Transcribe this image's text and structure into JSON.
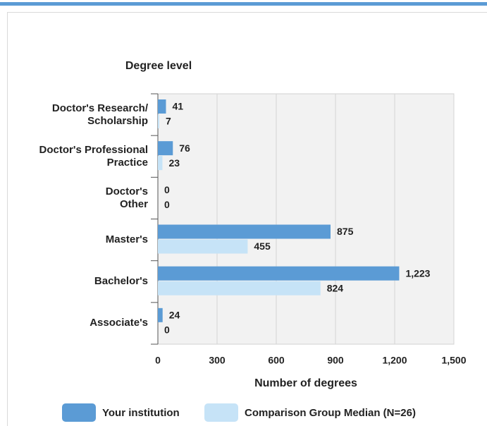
{
  "chart_data": {
    "type": "hbar",
    "ylabel": "Degree level",
    "xlabel": "Number of degrees",
    "categories": [
      "Doctor's Research/\nScholarship",
      "Doctor's Professional\nPractice",
      "Doctor's\nOther",
      "Master's",
      "Bachelor's",
      "Associate's"
    ],
    "series": [
      {
        "name": "Your institution",
        "color": "#5b9bd5",
        "values": [
          41,
          76,
          0,
          875,
          1223,
          24
        ],
        "value_labels": [
          "41",
          "76",
          "0",
          "875",
          "1,223",
          "24"
        ]
      },
      {
        "name": "Comparison Group Median (N=26)",
        "color": "#c6e3f7",
        "values": [
          7,
          23,
          0,
          455,
          824,
          0
        ]
      }
    ],
    "xlim": [
      0,
      1500
    ],
    "xticks": [
      0,
      300,
      600,
      900,
      {
        "value": 1200,
        "label": "1,200"
      },
      {
        "value": 1500,
        "label": "1,500"
      }
    ],
    "grid": true
  }
}
